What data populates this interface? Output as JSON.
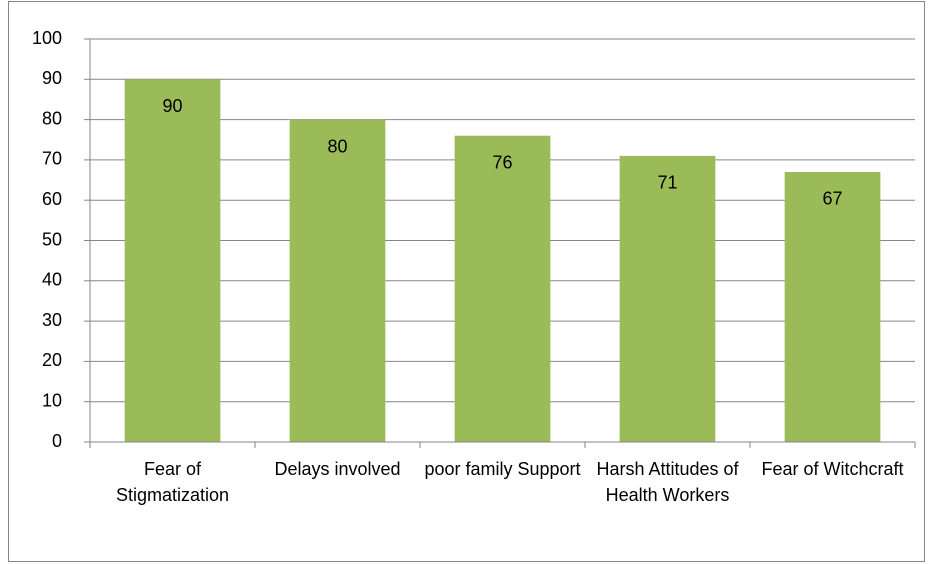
{
  "chart_data": {
    "type": "bar",
    "categories": [
      "Fear of Stigmatization",
      "Delays involved",
      "poor family Support",
      "Harsh Attitudes of Health Workers",
      "Fear of Witchcraft"
    ],
    "values": [
      90,
      80,
      76,
      71,
      67
    ],
    "color": "#9bbb59",
    "ylim": [
      0,
      100
    ],
    "yticks": [
      0,
      10,
      20,
      30,
      40,
      50,
      60,
      70,
      80,
      90,
      100
    ],
    "grid": true
  }
}
